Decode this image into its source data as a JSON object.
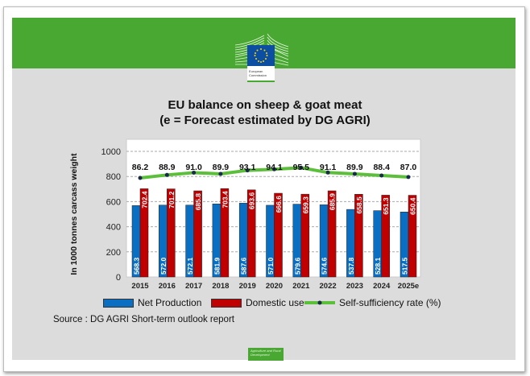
{
  "header": {
    "logo_text": "European Commission",
    "footer_logo_text": "Agriculture and Rural Development"
  },
  "chart_data": {
    "type": "bar",
    "title": "EU balance on sheep & goat meat",
    "subtitle": "(e = Forecast estimated by DG AGRI)",
    "ylabel": "In 1000 tonnes carcass weight",
    "xlabel": "",
    "ylim": [
      0,
      1000
    ],
    "yticks": [
      "0",
      "200",
      "400",
      "600",
      "800",
      "1000"
    ],
    "grid": true,
    "legend_position": "bottom",
    "categories": [
      "2015",
      "2016",
      "2017",
      "2018",
      "2019",
      "2020",
      "2021",
      "2022",
      "2023",
      "2024",
      "2025e"
    ],
    "series": [
      {
        "name": "Net Production",
        "type": "bar",
        "color": "#0a6fc2",
        "values": [
          568.3,
          572.0,
          572.1,
          581.9,
          587.6,
          571.0,
          579.6,
          574.6,
          537.8,
          528.1,
          517.5
        ],
        "labels": [
          "568.3",
          "572.0",
          "572.1",
          "581.9",
          "587.6",
          "571.0",
          "579.6",
          "574.6",
          "537.8",
          "528.1",
          "517.5"
        ]
      },
      {
        "name": "Domestic use",
        "type": "bar",
        "color": "#c00000",
        "values": [
          702.4,
          701.2,
          685.8,
          703.4,
          693.6,
          666.6,
          659.3,
          685.9,
          658.5,
          651.3,
          650.4
        ],
        "labels": [
          "702.4",
          "701.2",
          "685.8",
          "703.4",
          "693.6",
          "666.6",
          "659.3",
          "685.9",
          "658.5",
          "651.3",
          "650.4"
        ]
      },
      {
        "name": "Self-sufficiency rate (%)",
        "type": "line",
        "color": "#5cbf3a",
        "values": [
          86.2,
          88.9,
          91.0,
          89.9,
          93.1,
          94.1,
          95.5,
          91.1,
          89.9,
          88.4,
          87.0
        ],
        "labels": [
          "86.2",
          "88.9",
          "91.0",
          "89.9",
          "93.1",
          "94.1",
          "95.5",
          "91.1",
          "89.9",
          "88.4",
          "87.0"
        ]
      }
    ],
    "source": "Source : DG AGRI Short-term outlook report"
  }
}
